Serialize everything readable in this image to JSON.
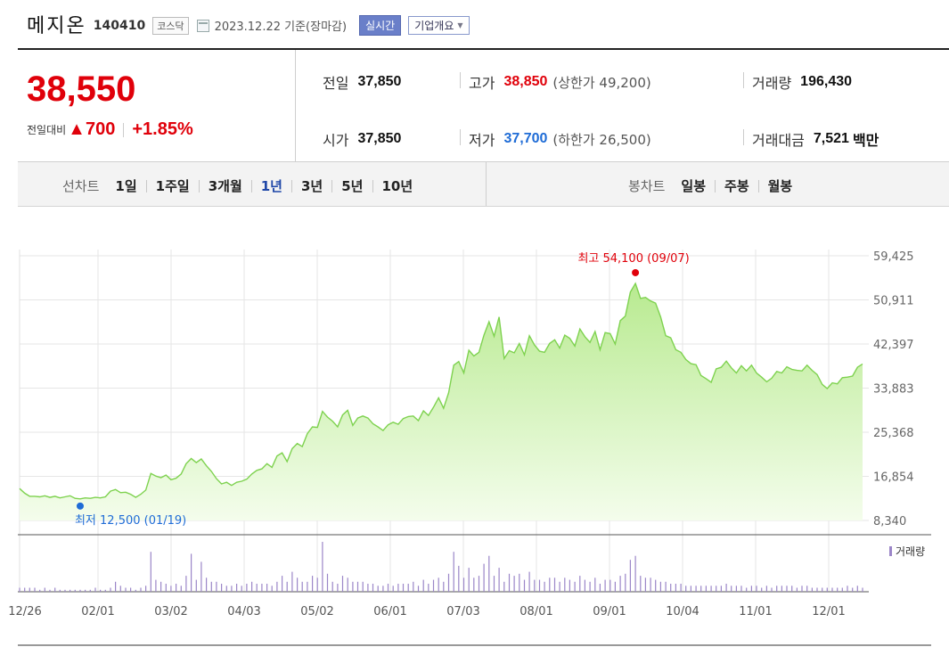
{
  "header": {
    "name": "메지온",
    "code": "140410",
    "market": "코스닥",
    "date": "2023.12.22",
    "basis": "기준(장마감)",
    "realtime_btn": "실시간",
    "company_btn": "기업개요"
  },
  "summary": {
    "price": "38,550",
    "change_label": "전일대비",
    "change": "▲700",
    "change_pct": "+1.85%",
    "prev_label": "전일",
    "prev": "37,850",
    "open_label": "시가",
    "open": "37,850",
    "high_label": "고가",
    "high": "38,850",
    "upper_limit": "(상한가 49,200)",
    "low_label": "저가",
    "low": "37,700",
    "lower_limit": "(하한가 26,500)",
    "volume_label": "거래량",
    "volume": "196,430",
    "amount_label": "거래대금",
    "amount": "7,521",
    "amount_unit": "백만"
  },
  "tabs": {
    "line_title": "선차트",
    "line_periods": [
      "1일",
      "1주일",
      "3개월",
      "1년",
      "3년",
      "5년",
      "10년"
    ],
    "active": "1년",
    "candle_title": "봉차트",
    "candle_periods": [
      "일봉",
      "주봉",
      "월봉"
    ]
  },
  "colors": {
    "up": "#e0000a",
    "down": "#1f6cd6",
    "line": "#7ed24f",
    "fill_top": "#c8f0a6",
    "volume": "#9b86c8"
  },
  "chart_data": {
    "type": "area",
    "y_ticks": [
      "59,425",
      "50,911",
      "42,397",
      "33,883",
      "25,368",
      "16,854",
      "8,340"
    ],
    "ylim": [
      8340,
      59425
    ],
    "x_ticks": [
      "12/26",
      "02/01",
      "03/02",
      "04/03",
      "05/02",
      "06/01",
      "07/03",
      "08/01",
      "09/01",
      "10/04",
      "11/01",
      "12/01"
    ],
    "high_label": "최고 54,100 (09/07)",
    "low_label": "최저 12,500 (01/19)",
    "volume_label": "거래량",
    "series": [
      {
        "values": [
          14500,
          13600,
          13000,
          13000,
          12900,
          13100,
          12800,
          13000,
          12700,
          12900,
          13100,
          12600,
          12500,
          12700,
          12600,
          12800,
          12700,
          12900,
          14000,
          14300,
          13700,
          13800,
          13400,
          12800,
          13400,
          14200,
          17400,
          16900,
          16600,
          17100,
          16200,
          16500,
          17300,
          19300,
          20300,
          19500,
          20200,
          18900,
          17800,
          16400,
          15400,
          15700,
          15100,
          15700,
          15900,
          16300,
          17300,
          18000,
          18300,
          19300,
          18600,
          20800,
          21400,
          19700,
          22200,
          23200,
          22600,
          25100,
          26400,
          26300,
          29400,
          28300,
          27500,
          26400,
          28700,
          29600,
          26700,
          28100,
          28500,
          28100,
          27000,
          26400,
          25700,
          26800,
          27300,
          26900,
          28000,
          28400,
          28500,
          27600,
          29500,
          28600,
          30200,
          32000,
          30000,
          33000,
          38300,
          39000,
          36800,
          41200,
          40100,
          40800,
          44100,
          46700,
          43900,
          47600,
          39600,
          41100,
          40700,
          42500,
          40300,
          44000,
          42200,
          41000,
          40800,
          42500,
          43200,
          41600,
          44100,
          43500,
          42000,
          45300,
          43800,
          42700,
          44800,
          41300,
          44600,
          44400,
          42400,
          46900,
          47800,
          52400,
          54100,
          51200,
          51400,
          50700,
          50300,
          47600,
          44000,
          43600,
          41300,
          40800,
          39400,
          38600,
          38400,
          36300,
          35700,
          35000,
          37600,
          37900,
          39100,
          37800,
          36800,
          38200,
          37200,
          38300,
          36800,
          36000,
          35100,
          35800,
          37100,
          36800,
          38000,
          37500,
          37300,
          37200,
          38300,
          37300,
          36500,
          34600,
          33800,
          34900,
          34700,
          35900,
          36000,
          36200,
          37900,
          38550
        ]
      },
      {
        "name": "거래량",
        "values": [
          2,
          2,
          2,
          2,
          1,
          2,
          1,
          2,
          1,
          1,
          1,
          1,
          1,
          1,
          1,
          2,
          1,
          1,
          2,
          5,
          3,
          2,
          2,
          1,
          2,
          3,
          20,
          6,
          5,
          4,
          3,
          4,
          3,
          8,
          19,
          6,
          15,
          7,
          5,
          5,
          4,
          3,
          3,
          4,
          3,
          4,
          5,
          4,
          4,
          4,
          3,
          5,
          8,
          5,
          10,
          7,
          5,
          5,
          8,
          7,
          25,
          9,
          5,
          4,
          8,
          7,
          5,
          5,
          5,
          4,
          4,
          3,
          3,
          4,
          3,
          4,
          4,
          4,
          5,
          3,
          6,
          4,
          6,
          7,
          5,
          9,
          20,
          13,
          7,
          12,
          7,
          8,
          14,
          18,
          8,
          12,
          5,
          9,
          8,
          9,
          6,
          10,
          6,
          6,
          5,
          7,
          7,
          5,
          7,
          6,
          5,
          8,
          6,
          5,
          7,
          4,
          6,
          6,
          5,
          8,
          9,
          16,
          18,
          8,
          7,
          7,
          6,
          5,
          5,
          4,
          4,
          4,
          3,
          3,
          3,
          3,
          3,
          3,
          3,
          3,
          4,
          3,
          3,
          3,
          2,
          3,
          3,
          2,
          3,
          2,
          3,
          3,
          3,
          3,
          2,
          3,
          3,
          2,
          2,
          2,
          2,
          2,
          2,
          2,
          3,
          2,
          3,
          2
        ]
      }
    ]
  }
}
